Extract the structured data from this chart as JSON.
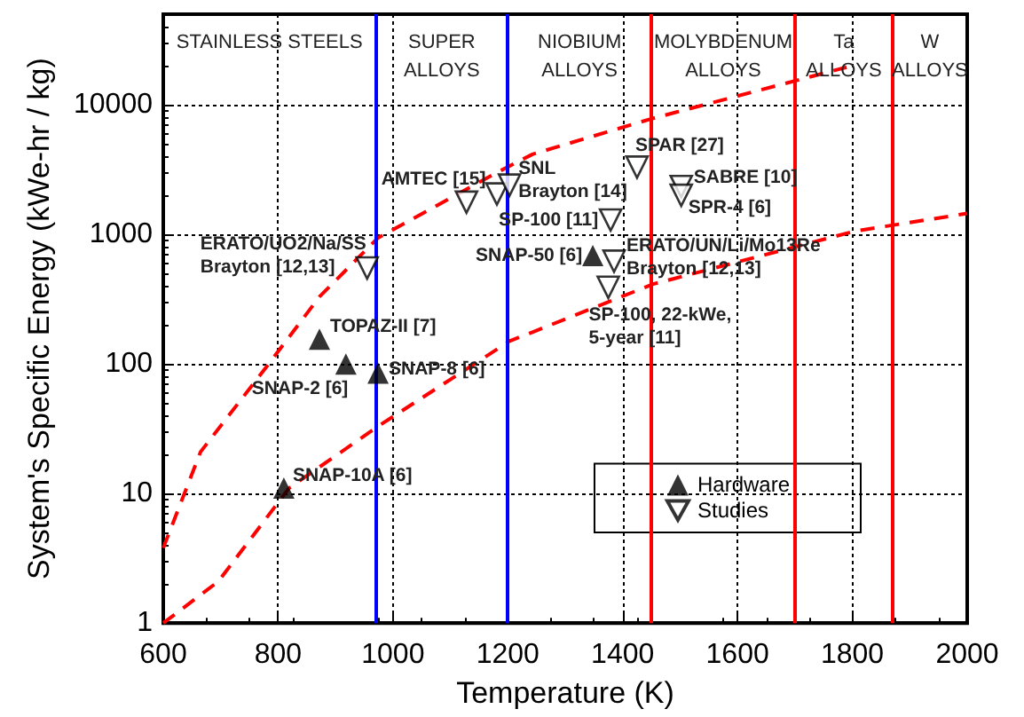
{
  "chart_data": {
    "type": "scatter",
    "xlabel": "Temperature (K)",
    "ylabel": "System's Specific Energy (kWe-hr / kg)",
    "xlim": [
      600,
      2000
    ],
    "xticks": [
      600,
      800,
      1000,
      1200,
      1400,
      1600,
      1800,
      2000
    ],
    "ylim": [
      1,
      50000
    ],
    "yticks": [
      1,
      10,
      100,
      1000,
      10000
    ],
    "log": "y",
    "grid": true,
    "legend": "bottom right",
    "series": [
      {
        "name": "Hardware",
        "marker": "triangle",
        "color": "#000000",
        "x": [
          810,
          872,
          918,
          974,
          1348
        ],
        "values": [
          11,
          155,
          100,
          85,
          685
        ]
      },
      {
        "name": "Studies",
        "marker": "triangle_down",
        "color": "#000000",
        "x": [
          955,
          1128,
          1181,
          1203,
          1379,
          1425,
          1502,
          1502,
          1385,
          1375
        ],
        "values": [
          550,
          1770,
          2050,
          2400,
          1290,
          3300,
          2340,
          2000,
          620,
          390
        ]
      },
      {
        "type": "line",
        "marker": "none",
        "line_style": "dashed",
        "color": "#ff0000",
        "x": [
          600,
          665,
          779,
          872,
          974,
          1181,
          1243,
          1450,
          1790
        ],
        "values": [
          3.8,
          21,
          94,
          330,
          940,
          3000,
          4150,
          7800,
          19500
        ]
      },
      {
        "type": "line",
        "marker": "none",
        "line_style": "dashed",
        "color": "#ff0000",
        "x": [
          600,
          696,
          819,
          974,
          1203,
          1243,
          1453,
          1805,
          2000
        ],
        "values": [
          1,
          2.1,
          11,
          33,
          150,
          176,
          413,
          1060,
          1450
        ]
      }
    ],
    "ref_lines": [
      {
        "axis": "x",
        "value": 970,
        "color": "#0000ff",
        "line_style": "solid"
      },
      {
        "axis": "x",
        "value": 1200,
        "color": "#0000ff",
        "line_style": "solid"
      },
      {
        "axis": "x",
        "value": 1450,
        "color": "#ff0000",
        "line_style": "solid"
      },
      {
        "axis": "x",
        "value": 1700,
        "color": "#ff0000",
        "line_style": "solid"
      },
      {
        "axis": "x",
        "value": 1870,
        "color": "#ff0000",
        "line_style": "solid"
      }
    ],
    "annotations": [
      "STAINLESS STEELS",
      "SUPER\nALLOYS",
      "NIOBIUM\nALLOYS",
      "MOLYBDENUM\nALLOYS",
      "Ta\nALLOYS",
      "W\nALLOYS",
      {
        "text": "SNAP-10A [6]",
        "x": 810,
        "y": 11
      },
      {
        "text": "TOPAZ-II [7]",
        "x": 872,
        "y": 155
      },
      {
        "text": "SNAP-2 [6]",
        "x": 918,
        "y": 100
      },
      {
        "text": "SNAP-8 [6]",
        "x": 974,
        "y": 85
      },
      {
        "text": "ERATO/UO2/Na/SS\nBrayton [12,13]",
        "x": 955,
        "y": 550
      },
      {
        "text": "AMTEC [15]",
        "x": 1128,
        "y": 1770
      },
      {
        "text": "SNL\nBrayton [14]",
        "x": 1203,
        "y": 2400
      },
      {
        "text": "SP-100 [11]",
        "x": 1379,
        "y": 1290
      },
      {
        "text": "SNAP-50 [6]",
        "x": 1348,
        "y": 685
      },
      {
        "text": "SPAR [27]",
        "x": 1425,
        "y": 3300
      },
      {
        "text": "SABRE [10]",
        "x": 1502,
        "y": 2340
      },
      {
        "text": "SPR-4 [6]",
        "x": 1502,
        "y": 2000
      },
      {
        "text": "ERATO/UN/Li/Mo13Re\nBrayton [12,13]",
        "x": 1385,
        "y": 620
      },
      {
        "text": "SP-100, 22-kWe,\n5-year [11]",
        "x": 1375,
        "y": 390
      }
    ]
  }
}
